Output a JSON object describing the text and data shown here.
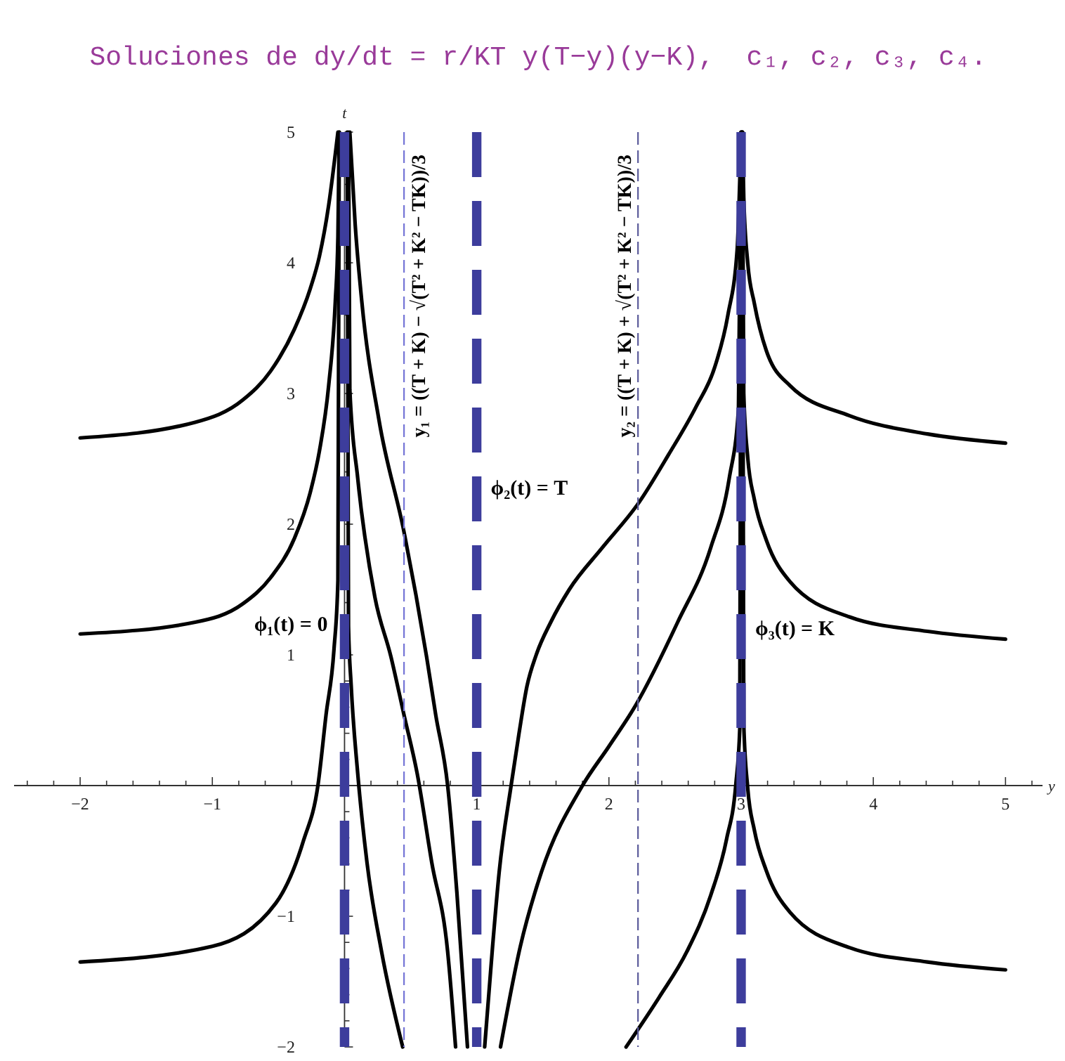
{
  "chart_data": {
    "type": "line",
    "title": "Soluciones de dy/dt = r/KT y(T−y)(y−K),  c₁, c₂, c₃, c₄.",
    "xlabel": "y",
    "ylabel": "t",
    "xlim": [
      -2.5,
      5.28
    ],
    "ylim": [
      -2,
      5
    ],
    "xticks": [
      {
        "value": -2.4,
        "label": null
      },
      {
        "value": -2.2,
        "label": null
      },
      {
        "value": -2,
        "label": "−2"
      },
      {
        "value": -1.8,
        "label": null
      },
      {
        "value": -1.6,
        "label": null
      },
      {
        "value": -1.4,
        "label": null
      },
      {
        "value": -1.2,
        "label": null
      },
      {
        "value": -1,
        "label": "−1"
      },
      {
        "value": -0.8,
        "label": null
      },
      {
        "value": -0.6,
        "label": null
      },
      {
        "value": -0.4,
        "label": null
      },
      {
        "value": -0.2,
        "label": null
      },
      {
        "value": 0.2,
        "label": null
      },
      {
        "value": 0.4,
        "label": null
      },
      {
        "value": 0.6,
        "label": null
      },
      {
        "value": 0.8,
        "label": null
      },
      1,
      {
        "value": 1.2,
        "label": null
      },
      {
        "value": 1.4,
        "label": null
      },
      {
        "value": 1.6,
        "label": null
      },
      {
        "value": 1.8,
        "label": null
      },
      2,
      {
        "value": 2.2,
        "label": null
      },
      {
        "value": 2.4,
        "label": null
      },
      {
        "value": 2.6,
        "label": null
      },
      {
        "value": 2.8,
        "label": null
      },
      3,
      {
        "value": 3.2,
        "label": null
      },
      {
        "value": 3.4,
        "label": null
      },
      {
        "value": 3.6,
        "label": null
      },
      {
        "value": 3.8,
        "label": null
      },
      4,
      {
        "value": 4.2,
        "label": null
      },
      {
        "value": 4.4,
        "label": null
      },
      {
        "value": 4.6,
        "label": null
      },
      {
        "value": 4.8,
        "label": null
      },
      5,
      {
        "value": 5.2,
        "label": null
      }
    ],
    "yticks": [
      {
        "value": -2,
        "label": "−2"
      },
      {
        "value": -1.8,
        "label": null
      },
      {
        "value": -1.6,
        "label": null
      },
      {
        "value": -1.4,
        "label": null
      },
      {
        "value": -1.2,
        "label": null
      },
      {
        "value": -1,
        "label": "−1"
      },
      {
        "value": -0.8,
        "label": null
      },
      {
        "value": -0.6,
        "label": null
      },
      {
        "value": -0.4,
        "label": null
      },
      {
        "value": -0.2,
        "label": null
      },
      {
        "value": 0.2,
        "label": null
      },
      {
        "value": 0.4,
        "label": null
      },
      {
        "value": 0.6,
        "label": null
      },
      {
        "value": 0.8,
        "label": null
      },
      1,
      {
        "value": 1.2,
        "label": null
      },
      {
        "value": 1.4,
        "label": null
      },
      {
        "value": 1.6,
        "label": null
      },
      {
        "value": 1.8,
        "label": null
      },
      2,
      {
        "value": 2.2,
        "label": null
      },
      {
        "value": 2.4,
        "label": null
      },
      {
        "value": 2.6,
        "label": null
      },
      {
        "value": 2.8,
        "label": null
      },
      3,
      {
        "value": 3.2,
        "label": null
      },
      {
        "value": 3.4,
        "label": null
      },
      {
        "value": 3.6,
        "label": null
      },
      {
        "value": 3.8,
        "label": null
      },
      4,
      {
        "value": 4.2,
        "label": null
      },
      {
        "value": 4.4,
        "label": null
      },
      {
        "value": 4.6,
        "label": null
      },
      {
        "value": 4.8,
        "label": null
      },
      5
    ],
    "series": [
      {
        "color": "#000000",
        "x": [
          -2,
          -1.13,
          -0.77,
          -0.56,
          -0.38,
          -0.26,
          -0.19,
          -0.12,
          -0.07,
          -0.05
        ],
        "values": [
          2.66,
          2.78,
          2.95,
          3.17,
          3.49,
          3.8,
          4.05,
          4.44,
          4.83,
          5
        ]
      },
      {
        "color": "#000000",
        "x": [
          -2,
          -1.13,
          -0.77,
          -0.56,
          -0.38,
          -0.26,
          -0.19,
          -0.12,
          -0.07,
          -0.05,
          -0.04
        ],
        "values": [
          1.16,
          1.25,
          1.39,
          1.59,
          1.89,
          2.24,
          2.56,
          3.06,
          3.7,
          4.2,
          5
        ]
      },
      {
        "color": "#000000",
        "x": [
          -2,
          -1,
          -0.52,
          -0.31,
          -0.2,
          -0.14,
          -0.08,
          -0.05,
          -0.04
        ],
        "values": [
          -1.35,
          -1.23,
          -0.9,
          -0.42,
          0.01,
          0.54,
          1.04,
          1.57,
          5
        ]
      },
      {
        "color": "#000000",
        "x": [
          0.02,
          0.03,
          0.05,
          0.1,
          0.17,
          0.28,
          0.44
        ],
        "values": [
          5,
          1.22,
          0.77,
          0.09,
          -0.59,
          -1.27,
          -2
        ]
      },
      {
        "color": "#000000",
        "x": [
          0.03,
          0.04,
          0.1,
          0.23,
          0.35,
          0.45,
          0.55,
          0.66,
          0.78,
          0.84
        ],
        "values": [
          5,
          3.03,
          2.35,
          1.44,
          0.99,
          0.54,
          0.09,
          -0.59,
          -1.27,
          -2
        ]
      },
      {
        "color": "#000000",
        "x": [
          0.04,
          0.08,
          0.13,
          0.26,
          0.45,
          0.62,
          0.69,
          0.78,
          0.85,
          0.93
        ],
        "values": [
          5,
          4.3,
          3.71,
          2.8,
          1.94,
          0.99,
          0.54,
          0,
          -0.82,
          -2
        ]
      },
      {
        "color": "#000000",
        "x": [
          1.06,
          1.12,
          1.17,
          1.26,
          1.32,
          1.38,
          1.45,
          1.56,
          1.7,
          1.95,
          2.23,
          2.45,
          2.66,
          2.8,
          2.9,
          2.97,
          3
        ],
        "values": [
          -2,
          -1.23,
          -0.66,
          0,
          0.4,
          0.76,
          1,
          1.25,
          1.5,
          1.82,
          2.17,
          2.53,
          2.9,
          3.2,
          3.6,
          4.1,
          5
        ]
      },
      {
        "color": "#000000",
        "x": [
          1.18,
          1.33,
          1.49,
          1.8,
          2,
          2.2,
          2.52,
          2.77,
          2.91,
          2.98,
          3
        ],
        "values": [
          -2,
          -1.23,
          -0.66,
          0,
          0.3,
          0.61,
          1.25,
          1.82,
          2.35,
          2.88,
          5
        ]
      },
      {
        "color": "#000000",
        "x": [
          2.13,
          2.38,
          2.59,
          2.77,
          2.89,
          2.96,
          2.99,
          3
        ],
        "values": [
          -2,
          -1.62,
          -1.27,
          -0.84,
          -0.41,
          0.01,
          0.44,
          5
        ]
      },
      {
        "color": "#000000",
        "x": [
          3.01,
          3.02,
          3.05,
          3.1,
          3.19,
          3.37,
          3.82,
          4.41,
          5
        ],
        "values": [
          5,
          4.5,
          4,
          3.69,
          3.33,
          3.06,
          2.83,
          2.69,
          2.62
        ]
      },
      {
        "color": "#000000",
        "x": [
          3.01,
          3.02,
          3.05,
          3.1,
          3.19,
          3.37,
          3.82,
          4.41,
          5
        ],
        "values": [
          5,
          3,
          2.51,
          2.19,
          1.88,
          1.56,
          1.29,
          1.18,
          1.12
        ]
      },
      {
        "color": "#000000",
        "x": [
          3.01,
          3.02,
          3.05,
          3.1,
          3.19,
          3.37,
          3.82,
          4.41,
          5
        ],
        "values": [
          5,
          0.47,
          -0.02,
          -0.34,
          -0.65,
          -0.97,
          -1.24,
          -1.35,
          -1.41
        ]
      }
    ],
    "ref_lines": [
      {
        "axis": "x",
        "value": 0,
        "label": "ϕ₁(t) = 0",
        "color": "#3d3d9c",
        "line_style": "dashed"
      },
      {
        "axis": "x",
        "value": 1,
        "label": "ϕ₂(t) = T",
        "color": "#3d3d9c",
        "line_style": "dashed"
      },
      {
        "axis": "x",
        "value": 3,
        "label": "ϕ₃(t) = K",
        "color": "#3d3d9c",
        "line_style": "dashed"
      },
      {
        "axis": "x",
        "value": 0.45,
        "label": "y₁ = ((T + K) − √(T² + K² − TK))/3",
        "color": "#7575d6",
        "line_style": "dashed"
      },
      {
        "axis": "x",
        "value": 2.22,
        "label": "y₂ = ((T + K) + √(T² + K² − TK))/3",
        "color": "#5a5a9a",
        "line_style": "dashed"
      }
    ]
  }
}
